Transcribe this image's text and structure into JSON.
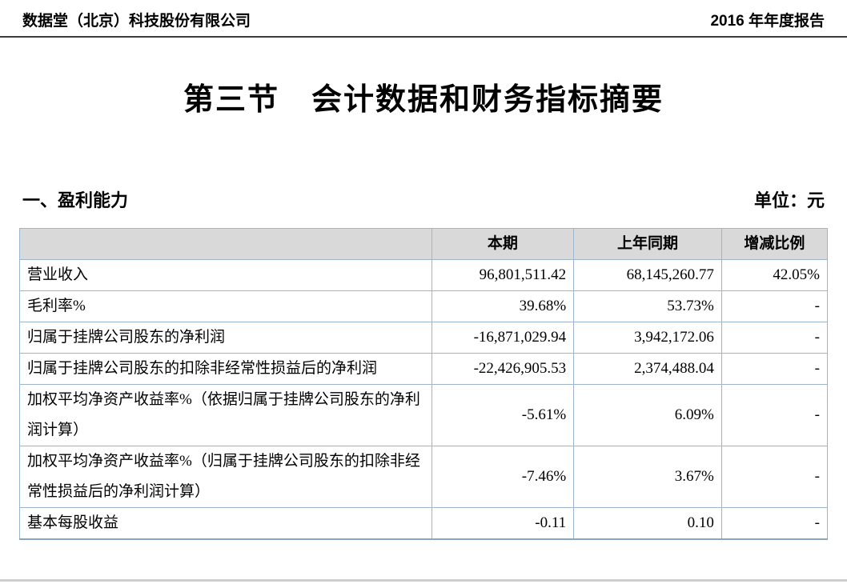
{
  "page_header": {
    "company": "数据堂（北京）科技股份有限公司",
    "report": "2016 年年度报告"
  },
  "title": "第三节　会计数据和财务指标摘要",
  "section": {
    "heading": "一、盈利能力",
    "unit": "单位：元"
  },
  "table": {
    "columns": [
      "",
      "本期",
      "上年同期",
      "增减比例"
    ],
    "rows": [
      {
        "label": "营业收入",
        "current": "96,801,511.42",
        "prior": "68,145,260.77",
        "change": "42.05%"
      },
      {
        "label": "毛利率%",
        "current": "39.68%",
        "prior": "53.73%",
        "change": "-"
      },
      {
        "label": "归属于挂牌公司股东的净利润",
        "current": "-16,871,029.94",
        "prior": "3,942,172.06",
        "change": "-"
      },
      {
        "label": "归属于挂牌公司股东的扣除非经常性损益后的净利润",
        "current": "-22,426,905.53",
        "prior": "2,374,488.04",
        "change": "-"
      },
      {
        "label": "加权平均净资产收益率%（依据归属于挂牌公司股东的净利润计算）",
        "current": "-5.61%",
        "prior": "6.09%",
        "change": "-"
      },
      {
        "label": "加权平均净资产收益率%（归属于挂牌公司股东的扣除非经常性损益后的净利润计算）",
        "current": "-7.46%",
        "prior": "3.67%",
        "change": "-"
      },
      {
        "label": "基本每股收益",
        "current": "-0.11",
        "prior": "0.10",
        "change": "-"
      }
    ]
  },
  "colors": {
    "header_fill": "#d9d9d9",
    "table_border": "#9db5cc",
    "header_rule": "#3c3c3c",
    "text": "#000000"
  }
}
